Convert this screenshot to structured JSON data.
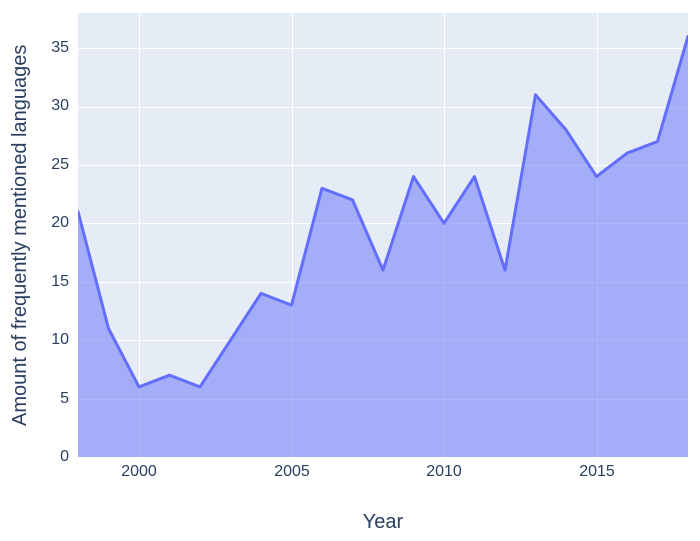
{
  "chart_data": {
    "type": "area",
    "x": [
      1998,
      1999,
      2000,
      2001,
      2002,
      2003,
      2004,
      2005,
      2006,
      2007,
      2008,
      2009,
      2010,
      2011,
      2012,
      2013,
      2014,
      2015,
      2016,
      2017,
      2018
    ],
    "y": [
      21,
      11,
      6,
      7,
      6,
      10,
      14,
      13,
      23,
      22,
      16,
      24,
      20,
      24,
      16,
      31,
      28,
      24,
      26,
      27,
      36
    ],
    "title": "",
    "xlabel": "Year",
    "ylabel": "Amount of frequently mentioned languages",
    "xlim": [
      1998,
      2018
    ],
    "ylim": [
      0,
      38
    ],
    "x_ticks": [
      2000,
      2005,
      2010,
      2015
    ],
    "y_ticks": [
      0,
      5,
      10,
      15,
      20,
      25,
      30,
      35
    ],
    "grid": true,
    "legend": false,
    "gridline_color": "#ffffff",
    "line_color": "#636efa",
    "fill_color": "rgba(99, 110, 250, 0.5)",
    "plot_bg_color": "#e5ecf6",
    "paper_bg_color": "#ffffff",
    "text_color": "#2a3f5f"
  }
}
